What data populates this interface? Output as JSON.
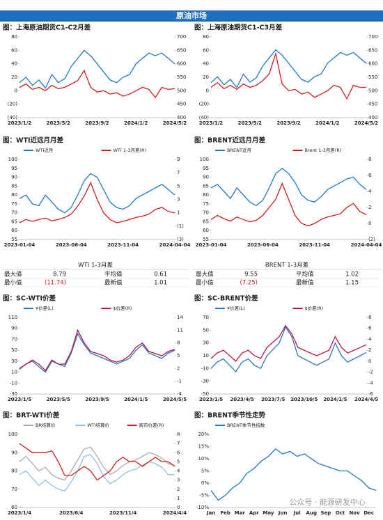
{
  "header": "原油市场",
  "watermark": "公众号 · 能源研发中心",
  "tables": [
    {
      "title": "WTI 1-3月差",
      "rows": [
        [
          "最大值",
          "8.79",
          "平均值",
          "0.61"
        ],
        [
          "最小值",
          "(11.74)",
          "最新值",
          "1.01"
        ]
      ]
    },
    {
      "title": "BRENT 1-3月差",
      "rows": [
        [
          "最大值",
          "9.55",
          "平均值",
          "1.02"
        ],
        [
          "最小值",
          "(7.25)",
          "最新值",
          "1.15"
        ]
      ]
    }
  ],
  "chart_data": [
    {
      "type": "line",
      "title": "图：上海原油期货C1-C2月差",
      "categories": [
        "2023/1/2",
        null,
        null,
        null,
        null,
        null,
        "2023/5/2",
        null,
        null,
        null,
        null,
        null,
        "2023/9/2",
        null,
        null,
        null,
        null,
        null,
        "2024/1/2",
        null,
        null,
        null,
        null,
        null,
        "2024/5/2"
      ],
      "ylim": [
        -40,
        80
      ],
      "yticks": [
        80,
        60,
        40,
        20,
        0,
        {
          "value": -20,
          "label": "(20)"
        },
        {
          "value": -40,
          "label": "(40)"
        }
      ],
      "y2lim": [
        400,
        700
      ],
      "y2ticks": [
        700,
        650,
        600,
        550,
        500,
        450,
        400
      ],
      "series": [
        {
          "color": "#d01c1c",
          "values": [
            5,
            10,
            2,
            5,
            0,
            8,
            3,
            5,
            10,
            15,
            30,
            5,
            -2,
            0,
            -5,
            -3,
            -8,
            -5,
            0,
            5,
            2,
            -10,
            5,
            2,
            3
          ]
        },
        {
          "color": "#1f77c8",
          "axis": "y2",
          "values": [
            530,
            550,
            520,
            540,
            510,
            560,
            530,
            545,
            590,
            620,
            650,
            630,
            600,
            570,
            540,
            530,
            550,
            560,
            600,
            620,
            640,
            630,
            640,
            620,
            600
          ]
        }
      ]
    },
    {
      "type": "line",
      "title": "图：上海原油期货C1-C3月差",
      "categories": [
        "2023/1/2",
        null,
        null,
        null,
        null,
        null,
        "2023/5/2",
        null,
        null,
        null,
        null,
        null,
        "2023/9/2",
        null,
        null,
        null,
        null,
        null,
        "2024/1/2",
        null,
        null,
        null,
        null,
        null,
        "2024/5/2"
      ],
      "ylim": [
        -40,
        80
      ],
      "yticks": [
        80,
        60,
        40,
        20,
        0,
        {
          "value": -20,
          "label": "(20)"
        },
        {
          "value": -40,
          "label": "(40)"
        }
      ],
      "y2lim": [
        400,
        700
      ],
      "y2ticks": [
        700,
        650,
        600,
        550,
        500,
        450,
        400
      ],
      "series": [
        {
          "color": "#d01c1c",
          "values": [
            5,
            12,
            3,
            8,
            2,
            10,
            5,
            8,
            15,
            25,
            55,
            10,
            0,
            2,
            -5,
            -2,
            -10,
            -5,
            0,
            8,
            5,
            -12,
            8,
            5,
            5
          ]
        },
        {
          "color": "#1f77c8",
          "axis": "y2",
          "values": [
            530,
            552,
            522,
            542,
            512,
            562,
            532,
            548,
            592,
            622,
            652,
            632,
            602,
            572,
            542,
            532,
            552,
            562,
            602,
            622,
            642,
            632,
            642,
            622,
            602
          ]
        }
      ]
    },
    {
      "type": "line",
      "title": "图：WTI近远月月差",
      "categories": [
        "2023-01-04",
        null,
        null,
        null,
        null,
        null,
        null,
        null,
        "2023-06-04",
        null,
        null,
        null,
        null,
        null,
        null,
        null,
        "2023-11-04",
        null,
        null,
        null,
        null,
        null,
        null,
        null,
        "2024-04-04"
      ],
      "ylim": [
        55,
        100
      ],
      "yticks": [
        100,
        95,
        90,
        85,
        80,
        75,
        70,
        65,
        60,
        55
      ],
      "y2lim": [
        -3,
        9
      ],
      "y2ticks": [
        9,
        7,
        5,
        3,
        1,
        {
          "value": -1,
          "label": "(1)"
        },
        {
          "value": -3,
          "label": "(3)"
        }
      ],
      "series": [
        {
          "name": "WTI近月",
          "color": "#1f77c8",
          "values": [
            78,
            80,
            75,
            74,
            80,
            76,
            72,
            70,
            73,
            80,
            88,
            92,
            90,
            83,
            76,
            73,
            72,
            74,
            78,
            80,
            82,
            84,
            86,
            83,
            80
          ]
        },
        {
          "name": "WTI 1-3月差(R)",
          "color": "#d01c1c",
          "axis": "y2",
          "values": [
            -0.5,
            0,
            -0.3,
            0,
            0.2,
            -0.2,
            0,
            0.3,
            0.8,
            2,
            3.5,
            5.5,
            3,
            1,
            0,
            -0.5,
            -0.3,
            0,
            0.3,
            0.5,
            0.8,
            1.5,
            1.8,
            1.2,
            1
          ]
        }
      ]
    },
    {
      "type": "line",
      "title": "图：BRENT近远月月差",
      "categories": [
        "2023-01-04",
        null,
        null,
        null,
        null,
        null,
        null,
        null,
        "2023-06-04",
        null,
        null,
        null,
        null,
        null,
        null,
        null,
        "2023-11-04",
        null,
        null,
        null,
        null,
        null,
        null,
        null,
        "2024-04-04"
      ],
      "ylim": [
        55,
        100
      ],
      "yticks": [
        100,
        95,
        90,
        85,
        80,
        75,
        70,
        65,
        60,
        55
      ],
      "y2lim": [
        -2,
        8
      ],
      "y2ticks": [
        8,
        6,
        4,
        2,
        0,
        {
          "value": -2,
          "label": "(2)"
        }
      ],
      "series": [
        {
          "name": "BRENT近月",
          "color": "#1f77c8",
          "values": [
            84,
            86,
            82,
            78,
            84,
            80,
            76,
            74,
            77,
            84,
            92,
            95,
            92,
            87,
            80,
            77,
            76,
            79,
            83,
            85,
            87,
            89,
            90,
            86,
            83
          ]
        },
        {
          "name": "Brent 1-3月差(R)",
          "color": "#d01c1c",
          "axis": "y2",
          "values": [
            0.5,
            1,
            0.6,
            0.3,
            0.8,
            0.5,
            0.2,
            0.4,
            1,
            2,
            3,
            5,
            3,
            1,
            0,
            -0.3,
            0,
            0.5,
            0.8,
            1,
            1.2,
            2,
            2.5,
            1.5,
            1.1
          ]
        }
      ]
    },
    {
      "type": "line",
      "title": "图：SC-WTI价差",
      "categories": [
        "2023/1/5",
        null,
        null,
        null,
        null,
        null,
        "2023/5/5",
        null,
        null,
        null,
        null,
        null,
        "2023/9/5",
        null,
        null,
        null,
        null,
        null,
        "2024/1/5",
        null,
        null,
        null,
        null,
        null,
        "2024/5/5"
      ],
      "ylim": [
        -30,
        110
      ],
      "yticks": [
        110,
        90,
        70,
        50,
        30,
        10,
        -10,
        -30
      ],
      "y2lim": [
        -4,
        14
      ],
      "y2ticks": [
        14,
        11,
        8,
        5,
        2,
        -1,
        -4
      ],
      "series": [
        {
          "name": "¥价差(L)",
          "color": "#1f77c8",
          "values": [
            15,
            25,
            30,
            20,
            10,
            30,
            25,
            20,
            45,
            80,
            60,
            45,
            40,
            35,
            30,
            25,
            30,
            35,
            50,
            60,
            45,
            40,
            35,
            45,
            50
          ]
        },
        {
          "name": "$价差(R)",
          "color": "#c0143c",
          "axis": "y2",
          "values": [
            2,
            3,
            4,
            3,
            1.5,
            4,
            3,
            3,
            6,
            11,
            8,
            6,
            5.5,
            5,
            4,
            3.5,
            4,
            5,
            7,
            8,
            6,
            5.5,
            5,
            6,
            6.5
          ]
        }
      ]
    },
    {
      "type": "line",
      "title": "图：SC-BRENT价差",
      "categories": [
        "2023/1/5",
        null,
        null,
        null,
        null,
        "2023/4/5",
        null,
        null,
        null,
        null,
        "2023/7/5",
        null,
        null,
        null,
        null,
        "2023/10/5",
        null,
        null,
        null,
        null,
        "2024/1/5",
        null,
        null,
        null,
        null,
        "2024/4/5"
      ],
      "ylim": [
        -50,
        70
      ],
      "yticks": [
        70,
        50,
        30,
        10,
        -10,
        -30,
        -50
      ],
      "y2lim": [
        -6,
        8
      ],
      "y2ticks": [
        8,
        6,
        4,
        2,
        0,
        -2,
        -4,
        -6
      ],
      "series": [
        {
          "name": "¥价差(L)",
          "color": "#1f77c8",
          "values": [
            -10,
            0,
            5,
            -5,
            -15,
            0,
            5,
            -5,
            -10,
            10,
            20,
            30,
            55,
            40,
            10,
            5,
            0,
            -5,
            0,
            5,
            30,
            10,
            0,
            5,
            10,
            15
          ]
        },
        {
          "name": "$价差(R)",
          "color": "#c0143c",
          "axis": "y2",
          "values": [
            0.5,
            1.5,
            2,
            1,
            0,
            1.5,
            2,
            1,
            0.5,
            2.5,
            3.5,
            4.5,
            6.5,
            5,
            2.5,
            2,
            1.5,
            1,
            1.5,
            2,
            4.5,
            2.5,
            1.5,
            2,
            2.5,
            3
          ]
        }
      ]
    },
    {
      "type": "line",
      "title": "图：BRT-WTI价差",
      "categories": [
        "2023/1/4",
        null,
        null,
        null,
        null,
        null,
        null,
        null,
        "2023/6/4",
        null,
        null,
        null,
        null,
        null,
        null,
        null,
        "2023/11/4",
        null,
        null,
        null,
        null,
        null,
        null,
        null,
        "2024/4/4"
      ],
      "ylim": [
        60,
        100
      ],
      "yticks": [
        100,
        90,
        80,
        70,
        60
      ],
      "y2lim": [
        0,
        8
      ],
      "y2ticks": [
        8,
        7,
        6,
        5,
        4,
        3,
        2,
        1,
        0
      ],
      "series": [
        {
          "name": "BR结算价",
          "color": "#aaaaaa",
          "values": [
            85,
            88,
            84,
            80,
            82,
            78,
            76,
            75,
            80,
            86,
            92,
            93,
            88,
            82,
            78,
            80,
            83,
            85,
            86,
            88,
            90,
            89,
            87,
            84,
            83
          ]
        },
        {
          "name": "WTI结算价",
          "color": "#8fbfe8",
          "values": [
            78,
            80,
            76,
            72,
            75,
            72,
            70,
            69,
            74,
            80,
            88,
            89,
            84,
            77,
            73,
            75,
            78,
            80,
            81,
            83,
            85,
            84,
            82,
            78,
            78
          ]
        },
        {
          "name": "跨市价差(R)",
          "color": "#d01c1c",
          "axis": "y2",
          "values": [
            7,
            6.5,
            6,
            6,
            6,
            6.2,
            5,
            3.5,
            3.5,
            4,
            4.5,
            4,
            3,
            3.5,
            4,
            5,
            5.5,
            5,
            5,
            4.5,
            5,
            5.5,
            5,
            5,
            4.5
          ]
        }
      ]
    },
    {
      "type": "line",
      "title": "图：BRENT季节性走势",
      "categories": [
        "Jan",
        null,
        "Feb",
        null,
        "Mar",
        null,
        "Apr",
        null,
        "May",
        null,
        "Jun",
        null,
        "Jul",
        null,
        "Aug",
        null,
        "Sep",
        null,
        "Oct",
        null,
        "Nov",
        null,
        "Dec",
        null
      ],
      "ylim": [
        -10,
        20
      ],
      "yticks": [
        {
          "value": 20,
          "label": "20%"
        },
        {
          "value": 15,
          "label": "15%"
        },
        {
          "value": 10,
          "label": "10%"
        },
        {
          "value": 5,
          "label": "5%"
        },
        {
          "value": 0,
          "label": "0%"
        },
        {
          "value": -5,
          "label": "-5%"
        },
        {
          "value": -10,
          "label": "-10%"
        }
      ],
      "series": [
        {
          "name": "BRENT季节性指数",
          "color": "#1f77c8",
          "values": [
            -3,
            -7,
            -5,
            -2,
            0,
            4,
            6,
            9,
            11,
            14,
            12,
            13,
            11,
            12,
            10,
            8,
            7,
            6,
            5,
            5,
            3,
            1,
            -2,
            -3
          ]
        }
      ]
    }
  ]
}
